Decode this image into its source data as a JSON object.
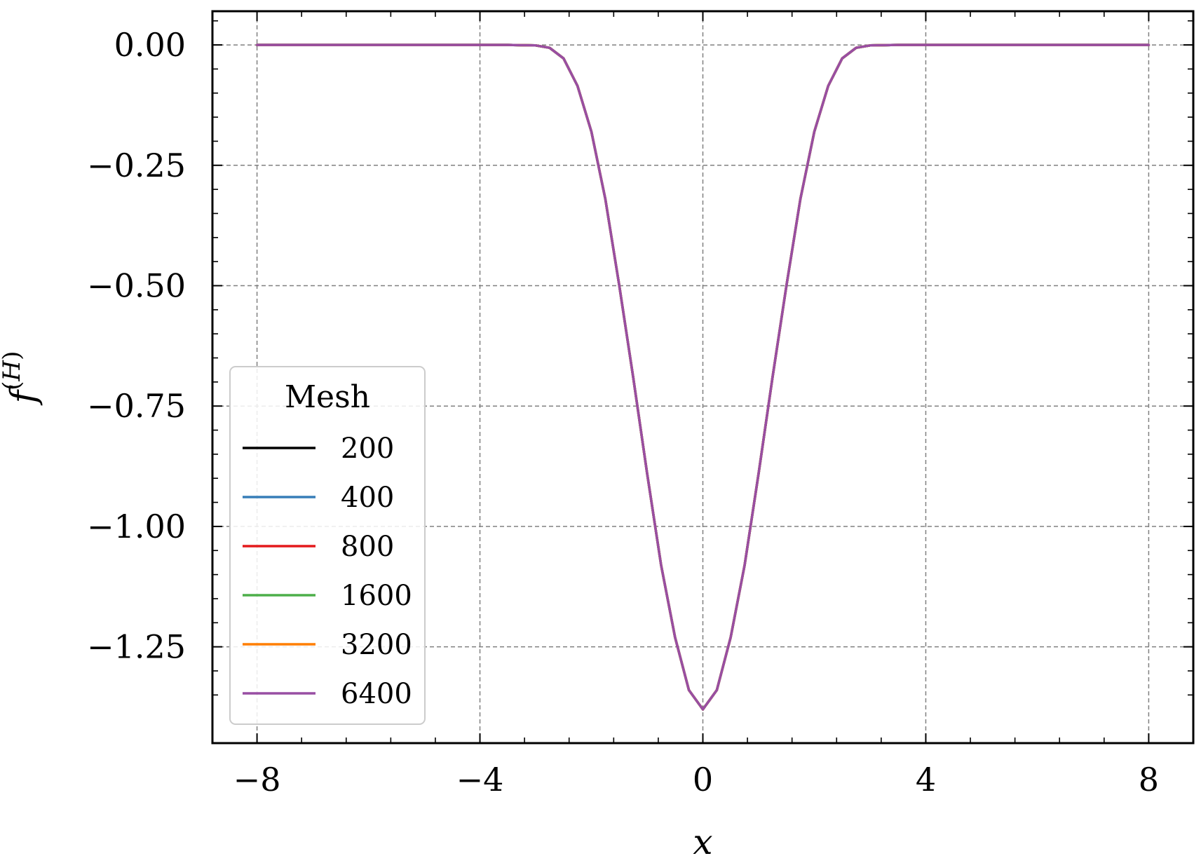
{
  "chart_data": {
    "type": "line",
    "title": "",
    "xlabel": "x",
    "ylabel": "f^(H)",
    "xlim": [
      -8.8,
      8.8
    ],
    "ylim": [
      -1.45,
      0.07
    ],
    "xticks": [
      -8,
      -4,
      0,
      4,
      8
    ],
    "xtick_labels": [
      "−8",
      "−4",
      "0",
      "4",
      "8"
    ],
    "yticks": [
      0.0,
      -0.25,
      -0.5,
      -0.75,
      -1.0,
      -1.25
    ],
    "ytick_labels": [
      "0.00",
      "−0.25",
      "−0.50",
      "−0.75",
      "−1.00",
      "−1.25"
    ],
    "grid": true,
    "legend": {
      "title": "Mesh",
      "placement": "lower-left"
    },
    "x": [
      -8,
      -6,
      -4,
      -3.5,
      -3,
      -2.75,
      -2.5,
      -2.25,
      -2,
      -1.75,
      -1.5,
      -1.25,
      -1,
      -0.75,
      -0.5,
      -0.25,
      0,
      0.25,
      0.5,
      0.75,
      1,
      1.25,
      1.5,
      1.75,
      2,
      2.25,
      2.5,
      2.75,
      3,
      3.5,
      4,
      6,
      8
    ],
    "series": [
      {
        "name": "200",
        "color": "#000000",
        "values": [
          0,
          0,
          0,
          0,
          -0.001,
          -0.006,
          -0.028,
          -0.085,
          -0.18,
          -0.32,
          -0.5,
          -0.69,
          -0.89,
          -1.08,
          -1.23,
          -1.34,
          -1.38,
          -1.34,
          -1.23,
          -1.08,
          -0.89,
          -0.69,
          -0.5,
          -0.32,
          -0.18,
          -0.085,
          -0.028,
          -0.006,
          -0.001,
          0,
          0,
          0,
          0
        ]
      },
      {
        "name": "400",
        "color": "#377eb8",
        "values": [
          0,
          0,
          0,
          0,
          -0.001,
          -0.006,
          -0.028,
          -0.085,
          -0.18,
          -0.32,
          -0.5,
          -0.69,
          -0.89,
          -1.08,
          -1.23,
          -1.34,
          -1.38,
          -1.34,
          -1.23,
          -1.08,
          -0.89,
          -0.69,
          -0.5,
          -0.32,
          -0.18,
          -0.085,
          -0.028,
          -0.006,
          -0.001,
          0,
          0,
          0,
          0
        ]
      },
      {
        "name": "800",
        "color": "#e41a1c",
        "values": [
          0,
          0,
          0,
          0,
          -0.001,
          -0.006,
          -0.028,
          -0.085,
          -0.18,
          -0.32,
          -0.5,
          -0.69,
          -0.89,
          -1.08,
          -1.23,
          -1.34,
          -1.38,
          -1.34,
          -1.23,
          -1.08,
          -0.89,
          -0.69,
          -0.5,
          -0.32,
          -0.18,
          -0.085,
          -0.028,
          -0.006,
          -0.001,
          0,
          0,
          0,
          0
        ]
      },
      {
        "name": "1600",
        "color": "#4daf4a",
        "values": [
          0,
          0,
          0,
          0,
          -0.001,
          -0.006,
          -0.028,
          -0.085,
          -0.18,
          -0.32,
          -0.5,
          -0.69,
          -0.89,
          -1.08,
          -1.23,
          -1.34,
          -1.38,
          -1.34,
          -1.23,
          -1.08,
          -0.89,
          -0.69,
          -0.5,
          -0.32,
          -0.18,
          -0.085,
          -0.028,
          -0.006,
          -0.001,
          0,
          0,
          0,
          0
        ]
      },
      {
        "name": "3200",
        "color": "#ff7f00",
        "values": [
          0,
          0,
          0,
          0,
          -0.001,
          -0.006,
          -0.028,
          -0.085,
          -0.18,
          -0.32,
          -0.5,
          -0.69,
          -0.89,
          -1.08,
          -1.23,
          -1.34,
          -1.38,
          -1.34,
          -1.23,
          -1.08,
          -0.89,
          -0.69,
          -0.5,
          -0.32,
          -0.18,
          -0.085,
          -0.028,
          -0.006,
          -0.001,
          0,
          0,
          0,
          0
        ]
      },
      {
        "name": "6400",
        "color": "#984ea3",
        "values": [
          0,
          0,
          0,
          0,
          -0.001,
          -0.006,
          -0.028,
          -0.085,
          -0.18,
          -0.32,
          -0.5,
          -0.69,
          -0.89,
          -1.08,
          -1.23,
          -1.34,
          -1.38,
          -1.34,
          -1.23,
          -1.08,
          -0.89,
          -0.69,
          -0.5,
          -0.32,
          -0.18,
          -0.085,
          -0.028,
          -0.006,
          -0.001,
          0,
          0,
          0,
          0
        ]
      }
    ]
  }
}
